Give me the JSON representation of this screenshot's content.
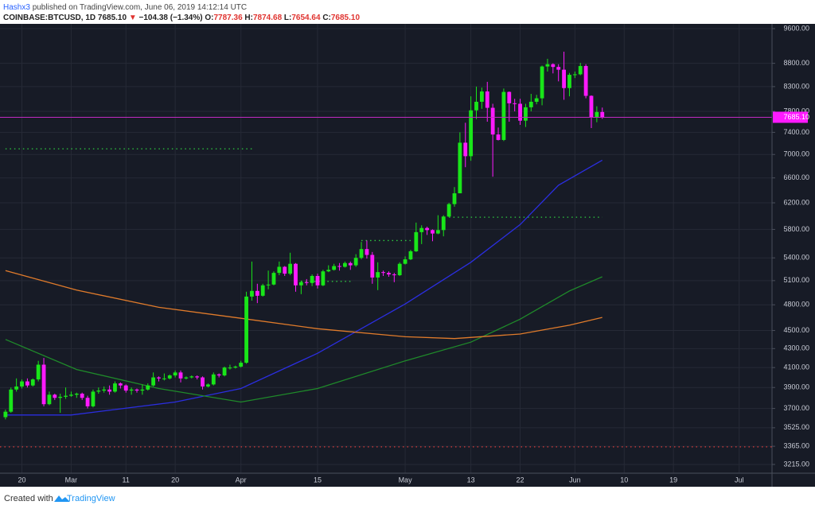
{
  "header": {
    "author": "Hashx3",
    "published": "published on TradingView.com, June 06, 2019 14:12:14 UTC"
  },
  "chart_data": {
    "type": "candlestick",
    "title": "COINBASE:BTCUSD, 1D",
    "quote": {
      "last": "7685.10",
      "arrow": "▼",
      "change": "−104.38 (−1.34%)",
      "o_label": "O:",
      "o": "7787.36",
      "h_label": "H:",
      "h": "7874.68",
      "l_label": "L:",
      "l": "7654.64",
      "c_label": "C:",
      "c": "7685.10"
    },
    "x": [
      "2019-02-17",
      "2019-02-18",
      "2019-02-19",
      "2019-02-20",
      "2019-02-21",
      "2019-02-22",
      "2019-02-23",
      "2019-02-24",
      "2019-02-25",
      "2019-02-26",
      "2019-02-27",
      "2019-02-28",
      "2019-03-01",
      "2019-03-02",
      "2019-03-03",
      "2019-03-04",
      "2019-03-05",
      "2019-03-06",
      "2019-03-07",
      "2019-03-08",
      "2019-03-09",
      "2019-03-10",
      "2019-03-11",
      "2019-03-12",
      "2019-03-13",
      "2019-03-14",
      "2019-03-15",
      "2019-03-16",
      "2019-03-17",
      "2019-03-18",
      "2019-03-19",
      "2019-03-20",
      "2019-03-21",
      "2019-03-22",
      "2019-03-23",
      "2019-03-24",
      "2019-03-25",
      "2019-03-26",
      "2019-03-27",
      "2019-03-28",
      "2019-03-29",
      "2019-03-30",
      "2019-03-31",
      "2019-04-01",
      "2019-04-02",
      "2019-04-03",
      "2019-04-04",
      "2019-04-05",
      "2019-04-06",
      "2019-04-07",
      "2019-04-08",
      "2019-04-09",
      "2019-04-10",
      "2019-04-11",
      "2019-04-12",
      "2019-04-13",
      "2019-04-14",
      "2019-04-15",
      "2019-04-16",
      "2019-04-17",
      "2019-04-18",
      "2019-04-19",
      "2019-04-20",
      "2019-04-21",
      "2019-04-22",
      "2019-04-23",
      "2019-04-24",
      "2019-04-25",
      "2019-04-26",
      "2019-04-27",
      "2019-04-28",
      "2019-04-29",
      "2019-04-30",
      "2019-05-01",
      "2019-05-02",
      "2019-05-03",
      "2019-05-04",
      "2019-05-05",
      "2019-05-06",
      "2019-05-07",
      "2019-05-08",
      "2019-05-09",
      "2019-05-10",
      "2019-05-11",
      "2019-05-12",
      "2019-05-13",
      "2019-05-14",
      "2019-05-15",
      "2019-05-16",
      "2019-05-17",
      "2019-05-18",
      "2019-05-19",
      "2019-05-20",
      "2019-05-21",
      "2019-05-22",
      "2019-05-23",
      "2019-05-24",
      "2019-05-25",
      "2019-05-26",
      "2019-05-27",
      "2019-05-28",
      "2019-05-29",
      "2019-05-30",
      "2019-05-31",
      "2019-06-01",
      "2019-06-02",
      "2019-06-03",
      "2019-06-04",
      "2019-06-05",
      "2019-06-06"
    ],
    "open": [
      3620,
      3670,
      3880,
      3910,
      3960,
      3920,
      3980,
      4130,
      3740,
      3830,
      3800,
      3810,
      3820,
      3830,
      3840,
      3800,
      3720,
      3860,
      3870,
      3880,
      3860,
      3940,
      3920,
      3870,
      3880,
      3870,
      3880,
      3920,
      4000,
      3990,
      3990,
      4020,
      4050,
      3990,
      4000,
      4010,
      4000,
      3910,
      3930,
      4030,
      4020,
      4100,
      4100,
      4110,
      4150,
      4900,
      4970,
      4910,
      5040,
      5050,
      5200,
      5280,
      5190,
      5320,
      5040,
      5080,
      5070,
      5160,
      5040,
      5220,
      5240,
      5290,
      5280,
      5330,
      5300,
      5400,
      5520,
      5440,
      5140,
      5210,
      5200,
      5180,
      5170,
      5320,
      5380,
      5490,
      5760,
      5820,
      5790,
      5740,
      5790,
      5990,
      6180,
      6350,
      7210,
      6970,
      7820,
      7990,
      8200,
      7870,
      7360,
      7260,
      8190,
      7960,
      7950,
      7620,
      7880,
      7990,
      8060,
      8730,
      8780,
      8720,
      8660,
      8270,
      8550,
      8560,
      8740,
      8110,
      7680,
      7787.36
    ],
    "high": [
      3690,
      3900,
      3990,
      3980,
      3990,
      3990,
      4170,
      4200,
      3860,
      3840,
      3840,
      3900,
      3860,
      3850,
      3850,
      3820,
      3880,
      3900,
      3910,
      3920,
      3960,
      3950,
      3930,
      3900,
      3890,
      3930,
      3940,
      4050,
      4010,
      4040,
      4030,
      4070,
      4070,
      4010,
      4020,
      4020,
      4010,
      3940,
      4050,
      4040,
      4110,
      4130,
      4120,
      4170,
      4960,
      5350,
      5060,
      5060,
      5230,
      5220,
      5350,
      5290,
      5470,
      5330,
      5100,
      5120,
      5180,
      5190,
      5240,
      5300,
      5320,
      5330,
      5350,
      5350,
      5450,
      5620,
      5640,
      5480,
      5340,
      5230,
      5220,
      5200,
      5340,
      5420,
      5510,
      5900,
      5860,
      5840,
      5800,
      6010,
      6010,
      6200,
      6450,
      7400,
      7580,
      8100,
      8300,
      8280,
      8400,
      7950,
      7490,
      8260,
      8200,
      8050,
      8050,
      7950,
      8150,
      8130,
      8750,
      8900,
      8800,
      8780,
      9060,
      8590,
      8620,
      8810,
      8780,
      8120,
      7900,
      7874.68
    ],
    "low": [
      3600,
      3660,
      3860,
      3890,
      3900,
      3910,
      3960,
      3720,
      3730,
      3780,
      3660,
      3790,
      3810,
      3800,
      3780,
      3700,
      3710,
      3840,
      3850,
      3830,
      3850,
      3890,
      3850,
      3830,
      3850,
      3830,
      3870,
      3910,
      3960,
      3970,
      3980,
      4000,
      3950,
      3980,
      3990,
      3980,
      3880,
      3900,
      3920,
      4000,
      4010,
      4080,
      4090,
      4100,
      4140,
      4850,
      4820,
      4900,
      4990,
      5040,
      5170,
      5160,
      5170,
      4960,
      4930,
      5040,
      5030,
      5000,
      5030,
      5210,
      5230,
      5230,
      5270,
      5240,
      5280,
      5380,
      5390,
      5060,
      4980,
      5160,
      5150,
      5080,
      5160,
      5310,
      5370,
      5480,
      5590,
      5720,
      5630,
      5730,
      5700,
      5980,
      6140,
      6350,
      6780,
      6890,
      7650,
      7850,
      7600,
      6620,
      7250,
      7240,
      7600,
      7800,
      7540,
      7500,
      7800,
      7940,
      7920,
      8620,
      8580,
      8410,
      8030,
      8100,
      8480,
      8540,
      8060,
      7480,
      7590,
      7654.64
    ],
    "close": [
      3670,
      3880,
      3910,
      3960,
      3920,
      3980,
      4130,
      3740,
      3830,
      3800,
      3810,
      3820,
      3830,
      3840,
      3800,
      3720,
      3860,
      3870,
      3880,
      3860,
      3940,
      3920,
      3870,
      3880,
      3870,
      3880,
      3920,
      4000,
      3990,
      3990,
      4020,
      4050,
      3990,
      4000,
      4010,
      4000,
      3910,
      3930,
      4030,
      4020,
      4100,
      4100,
      4110,
      4150,
      4900,
      4970,
      4910,
      5040,
      5050,
      5200,
      5280,
      5190,
      5320,
      5040,
      5080,
      5070,
      5160,
      5040,
      5220,
      5240,
      5290,
      5280,
      5330,
      5300,
      5400,
      5520,
      5440,
      5140,
      5210,
      5200,
      5180,
      5170,
      5320,
      5380,
      5490,
      5760,
      5820,
      5790,
      5740,
      5790,
      5990,
      6180,
      6350,
      7210,
      6970,
      7820,
      7990,
      8200,
      7870,
      7360,
      7260,
      8190,
      7960,
      7950,
      7620,
      7880,
      7990,
      8060,
      8730,
      8780,
      8720,
      8660,
      8270,
      8550,
      8560,
      8740,
      8110,
      7680,
      7787.36,
      7685.1
    ],
    "up_color": "#19e619",
    "down_color": "#ff1aff",
    "price_label": "7685.10",
    "price_line_color": "#c02ac0",
    "overlays": [
      {
        "color": "#2b2ee0",
        "x": [
          "2019-02-17",
          "2019-03-01",
          "2019-03-20",
          "2019-04-01",
          "2019-04-15",
          "2019-05-01",
          "2019-05-13",
          "2019-05-22",
          "2019-05-29",
          "2019-06-06"
        ],
        "values": [
          3640,
          3640,
          3760,
          3890,
          4250,
          4810,
          5340,
          5870,
          6480,
          6900
        ]
      },
      {
        "color": "#1f8a2a",
        "x": [
          "2019-02-17",
          "2019-03-02",
          "2019-03-17",
          "2019-04-01",
          "2019-04-15",
          "2019-05-01",
          "2019-05-13",
          "2019-05-22",
          "2019-05-31",
          "2019-06-06"
        ],
        "values": [
          4400,
          4080,
          3890,
          3760,
          3890,
          4170,
          4370,
          4630,
          4970,
          5150
        ]
      },
      {
        "color": "#e07b2b",
        "x": [
          "2019-02-17",
          "2019-03-02",
          "2019-03-17",
          "2019-04-01",
          "2019-04-15",
          "2019-05-01",
          "2019-05-10",
          "2019-05-22",
          "2019-05-31",
          "2019-06-06"
        ],
        "values": [
          5230,
          4980,
          4770,
          4640,
          4520,
          4430,
          4410,
          4460,
          4560,
          4650
        ]
      }
    ],
    "levels": [
      {
        "value": 7100,
        "color": "#2ecc40",
        "from": "2019-02-17",
        "to": "2019-04-03"
      },
      {
        "value": 5090,
        "color": "#2ecc40",
        "from": "2019-04-12",
        "to": "2019-04-21"
      },
      {
        "value": 5640,
        "color": "#2ecc40",
        "from": "2019-04-23",
        "to": "2019-05-02"
      },
      {
        "value": 5980,
        "color": "#2ecc40",
        "from": "2019-05-09",
        "to": "2019-06-06"
      },
      {
        "value": 3360,
        "color": "#d83a3a",
        "from": "2019-02-16",
        "to": "2019-07-07"
      }
    ],
    "log_scale": true,
    "grid": true,
    "xlim": [
      "2019-02-16",
      "2019-07-07"
    ],
    "xticks": [
      {
        "value": "2019-02-20",
        "label": "20"
      },
      {
        "value": "2019-03-01",
        "label": "Mar"
      },
      {
        "value": "2019-03-11",
        "label": "11"
      },
      {
        "value": "2019-03-20",
        "label": "20"
      },
      {
        "value": "2019-04-01",
        "label": "Apr"
      },
      {
        "value": "2019-04-15",
        "label": "15"
      },
      {
        "value": "2019-05-01",
        "label": "May"
      },
      {
        "value": "2019-05-13",
        "label": "13"
      },
      {
        "value": "2019-05-22",
        "label": "22"
      },
      {
        "value": "2019-06-01",
        "label": "Jun"
      },
      {
        "value": "2019-06-10",
        "label": "10"
      },
      {
        "value": "2019-06-19",
        "label": "19"
      },
      {
        "value": "2019-07-01",
        "label": "Jul"
      }
    ],
    "ylim": [
      3145,
      9716
    ],
    "yticks": [
      {
        "value": 3215,
        "label": "3215.00"
      },
      {
        "value": 3365,
        "label": "3365.00"
      },
      {
        "value": 3525,
        "label": "3525.00"
      },
      {
        "value": 3700,
        "label": "3700.00"
      },
      {
        "value": 3900,
        "label": "3900.00"
      },
      {
        "value": 4100,
        "label": "4100.00"
      },
      {
        "value": 4300,
        "label": "4300.00"
      },
      {
        "value": 4500,
        "label": "4500.00"
      },
      {
        "value": 4800,
        "label": "4800.00"
      },
      {
        "value": 5100,
        "label": "5100.00"
      },
      {
        "value": 5400,
        "label": "5400.00"
      },
      {
        "value": 5800,
        "label": "5800.00"
      },
      {
        "value": 6200,
        "label": "6200.00"
      },
      {
        "value": 6600,
        "label": "6600.00"
      },
      {
        "value": 7000,
        "label": "7000.00"
      },
      {
        "value": 7400,
        "label": "7400.00"
      },
      {
        "value": 7800,
        "label": "7800.00"
      },
      {
        "value": 8300,
        "label": "8300.00"
      },
      {
        "value": 8800,
        "label": "8800.00"
      },
      {
        "value": 9600,
        "label": "9600.00"
      }
    ]
  },
  "footer": {
    "prefix": "Created with",
    "brand": "TradingView"
  }
}
